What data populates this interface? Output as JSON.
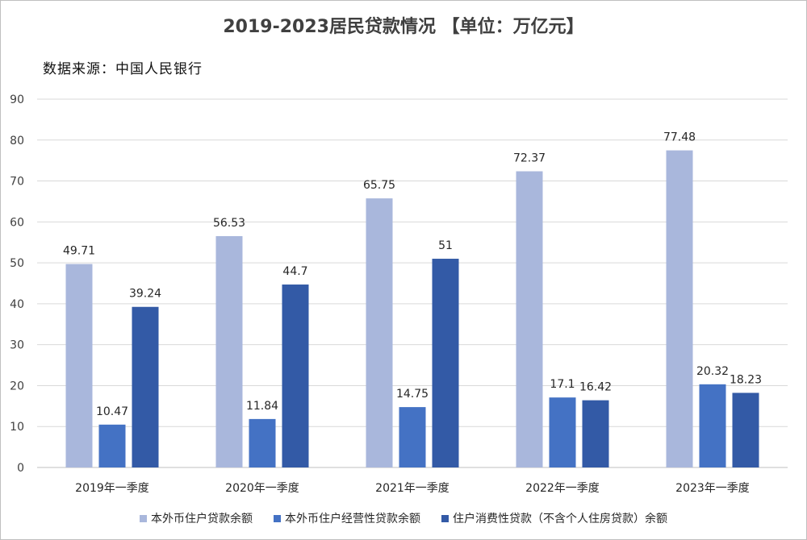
{
  "chart_data": {
    "type": "bar",
    "title": "2019-2023居民贷款情况 【单位：万亿元】",
    "subtitle": "数据来源：中国人民银行",
    "categories": [
      "2019年一季度",
      "2020年一季度",
      "2021年一季度",
      "2022年一季度",
      "2023年一季度"
    ],
    "series": [
      {
        "name": "本外币住户贷款余额",
        "color": "#a9b7dc",
        "values": [
          49.71,
          56.53,
          65.75,
          72.37,
          77.48
        ],
        "labels": [
          "49.71",
          "56.53",
          "65.75",
          "72.37",
          "77.48"
        ]
      },
      {
        "name": "本外币住户经营性贷款余额",
        "color": "#4472c4",
        "values": [
          10.47,
          11.84,
          14.75,
          17.1,
          20.32
        ],
        "labels": [
          "10.47",
          "11.84",
          "14.75",
          "17.1",
          "20.32"
        ]
      },
      {
        "name": "住户消费性贷款（不含个人住房贷款）余额",
        "color": "#335aa6",
        "values": [
          39.24,
          44.7,
          51,
          16.42,
          18.23
        ],
        "labels": [
          "39.24",
          "44.7",
          "51",
          "16.42",
          "18.23"
        ]
      }
    ],
    "ylim": [
      0,
      90
    ],
    "yticks": [
      "0",
      "10",
      "20",
      "30",
      "40",
      "50",
      "60",
      "70",
      "80",
      "90"
    ],
    "grid": true,
    "legend_position": "bottom"
  }
}
